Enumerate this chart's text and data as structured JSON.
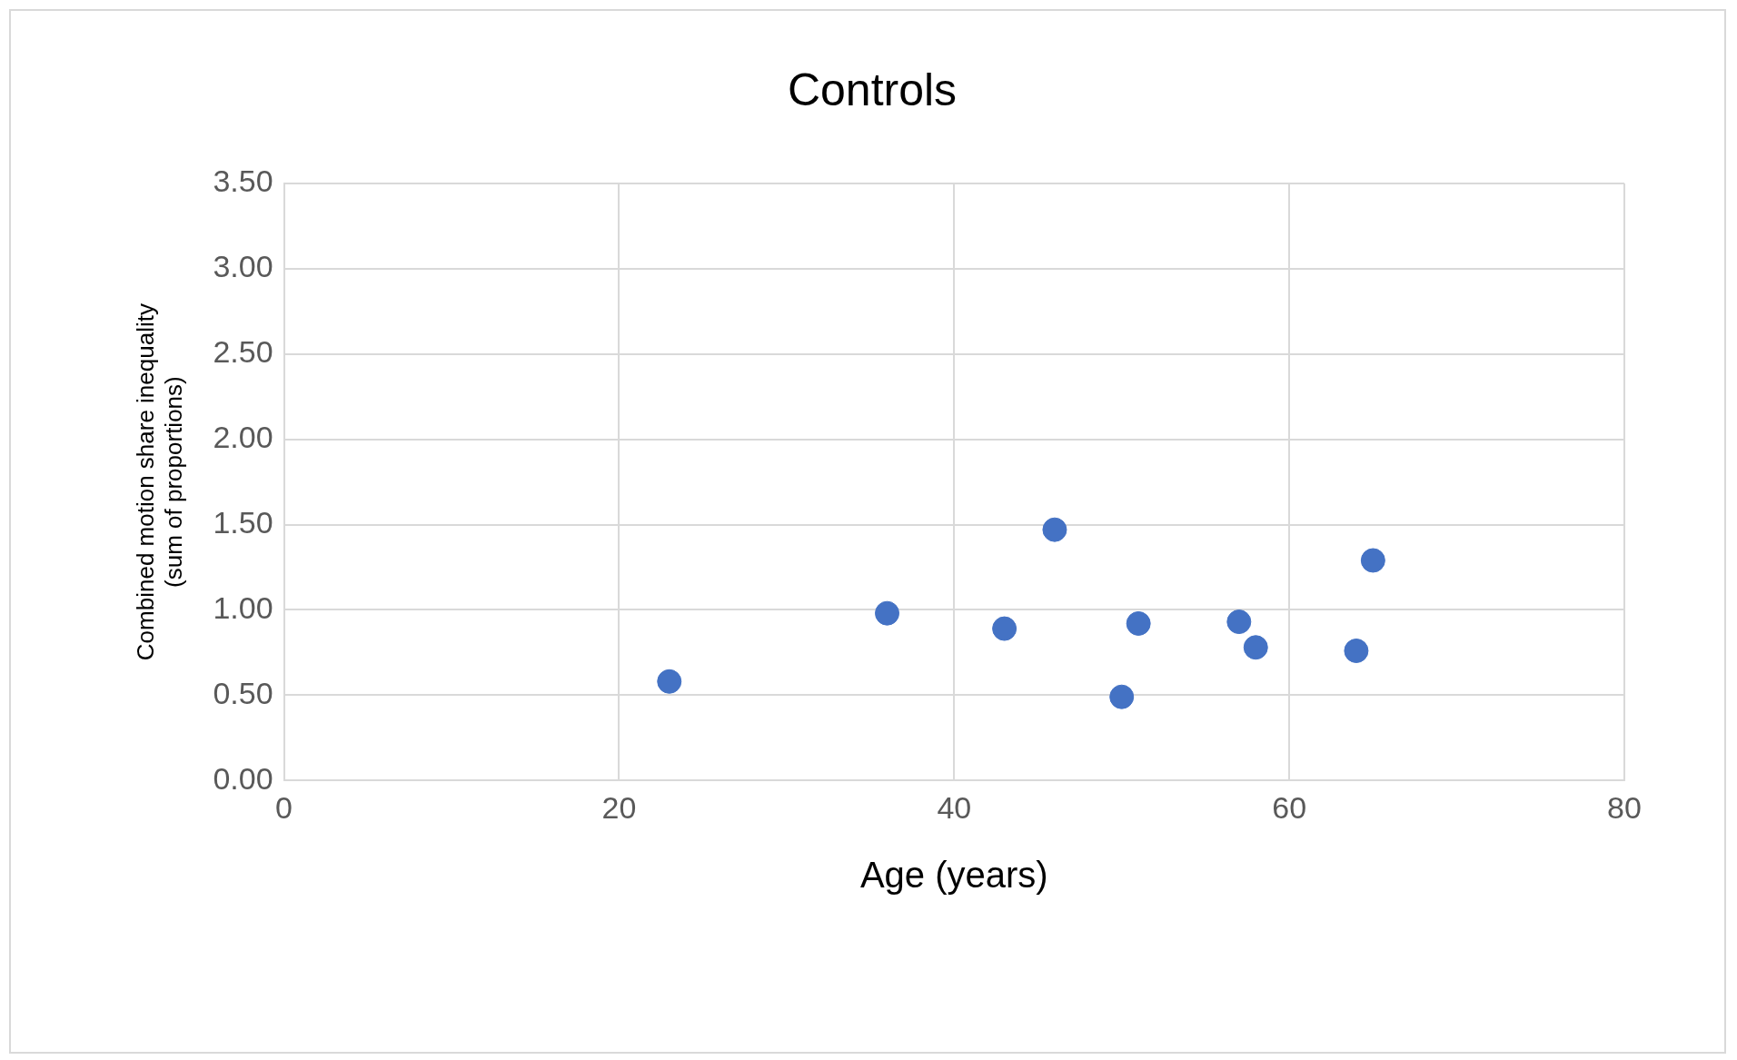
{
  "chart_data": {
    "type": "scatter",
    "title": "Controls",
    "xlabel": "Age (years)",
    "ylabel": "Combined motion share inequality\n(sum of proportions)",
    "x": [
      23,
      36,
      43,
      46,
      50,
      51,
      57,
      58,
      64,
      65
    ],
    "series": [
      {
        "color": "#4472c4",
        "values": [
          0.58,
          0.98,
          0.89,
          1.47,
          0.49,
          0.92,
          0.93,
          0.78,
          0.76,
          1.29
        ]
      }
    ],
    "xlim": [
      0,
      80
    ],
    "xticks": [
      0,
      20,
      40,
      60,
      80
    ],
    "ylim": [
      0,
      3.5
    ],
    "yticks": [
      {
        "value": 0,
        "label": "0.00"
      },
      {
        "value": 0.5,
        "label": "0.50"
      },
      {
        "value": 1,
        "label": "1.00"
      },
      {
        "value": 1.5,
        "label": "1.50"
      },
      {
        "value": 2,
        "label": "2.00"
      },
      {
        "value": 2.5,
        "label": "2.50"
      },
      {
        "value": 3,
        "label": "3.00"
      },
      {
        "value": 3.5,
        "label": "3.50"
      }
    ],
    "grid": true,
    "legend": false,
    "marker": "circle"
  }
}
